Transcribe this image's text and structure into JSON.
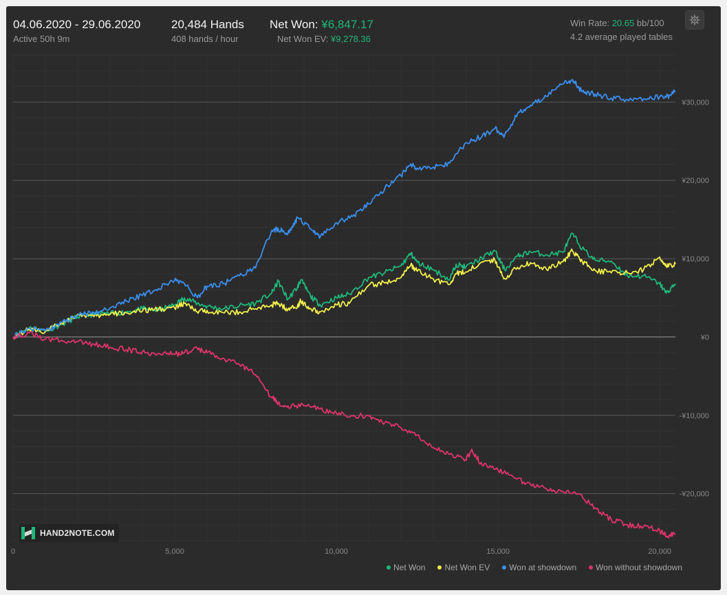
{
  "header": {
    "date_range": "04.06.2020 - 29.06.2020",
    "active": "Active 50h 9m",
    "hands": "20,484 Hands",
    "hands_per_hour": "408 hands / hour",
    "net_won_label": "Net Won:",
    "net_won_value": "¥6,847.17",
    "net_won_ev_label": "Net Won  EV:",
    "net_won_ev_value": "¥9,278.36",
    "win_rate_label": "Win Rate:",
    "win_rate_value": "20.65",
    "win_rate_unit": "bb/100",
    "avg_tables": "4.2 average played tables"
  },
  "logo": {
    "text": "HAND2NOTE.COM"
  },
  "icons": {
    "settings": "gear-icon",
    "logo": "hand2note-logo-icon"
  },
  "colors": {
    "net_won": "#1fb77b",
    "net_won_ev": "#f1ef4a",
    "showdown": "#3a8ff0",
    "non_showdown": "#e0346b",
    "background": "#2b2b2b"
  },
  "chart_data": {
    "type": "line",
    "xlim": [
      0,
      20484
    ],
    "ylim": [
      -26000,
      36000
    ],
    "x_ticks": [
      0,
      5000,
      10000,
      15000,
      20000
    ],
    "x_tick_labels": [
      "0",
      "5,000",
      "10,000",
      "15,000",
      "20,000"
    ],
    "y_ticks": [
      30000,
      20000,
      10000,
      0,
      -10000,
      -20000
    ],
    "y_tick_labels": [
      "¥30,000",
      "¥20,000",
      "¥10,000",
      "¥0",
      "-¥10,000",
      "-¥20,000"
    ],
    "grid": true,
    "legend_position": "bottom-right",
    "series": [
      {
        "name": "Net Won",
        "color": "#1fb77b",
        "points": [
          [
            0,
            0
          ],
          [
            500,
            1200
          ],
          [
            1000,
            800
          ],
          [
            1500,
            1600
          ],
          [
            2000,
            2600
          ],
          [
            2500,
            2900
          ],
          [
            3000,
            3000
          ],
          [
            3500,
            3200
          ],
          [
            4000,
            3600
          ],
          [
            4500,
            3400
          ],
          [
            5000,
            4100
          ],
          [
            5300,
            5000
          ],
          [
            5700,
            4300
          ],
          [
            6000,
            3900
          ],
          [
            6500,
            3600
          ],
          [
            7000,
            4000
          ],
          [
            7500,
            4300
          ],
          [
            8000,
            5600
          ],
          [
            8200,
            7100
          ],
          [
            8500,
            4800
          ],
          [
            8800,
            6400
          ],
          [
            8900,
            7300
          ],
          [
            9200,
            5200
          ],
          [
            9500,
            4100
          ],
          [
            10000,
            5000
          ],
          [
            10400,
            5500
          ],
          [
            11000,
            7600
          ],
          [
            11500,
            8200
          ],
          [
            12000,
            9100
          ],
          [
            12300,
            10700
          ],
          [
            12500,
            9500
          ],
          [
            13000,
            8600
          ],
          [
            13500,
            7300
          ],
          [
            13700,
            9300
          ],
          [
            14000,
            8900
          ],
          [
            14500,
            10100
          ],
          [
            14900,
            11000
          ],
          [
            15200,
            8600
          ],
          [
            15600,
            10300
          ],
          [
            16000,
            10900
          ],
          [
            16500,
            10500
          ],
          [
            17000,
            10800
          ],
          [
            17300,
            13200
          ],
          [
            17600,
            11300
          ],
          [
            18000,
            9800
          ],
          [
            18500,
            9700
          ],
          [
            19000,
            7800
          ],
          [
            19500,
            7800
          ],
          [
            20000,
            6800
          ],
          [
            20200,
            5600
          ],
          [
            20484,
            6800
          ]
        ]
      },
      {
        "name": "Net Won  EV",
        "color": "#f1ef4a",
        "points": [
          [
            0,
            0
          ],
          [
            500,
            1000
          ],
          [
            1000,
            700
          ],
          [
            1500,
            1800
          ],
          [
            2000,
            2900
          ],
          [
            2500,
            2600
          ],
          [
            3000,
            2900
          ],
          [
            3500,
            3100
          ],
          [
            4000,
            3300
          ],
          [
            4500,
            3600
          ],
          [
            5000,
            3700
          ],
          [
            5300,
            4300
          ],
          [
            5700,
            3200
          ],
          [
            6000,
            3400
          ],
          [
            6500,
            3100
          ],
          [
            7000,
            3200
          ],
          [
            7500,
            3600
          ],
          [
            8000,
            4100
          ],
          [
            8200,
            4300
          ],
          [
            8500,
            3500
          ],
          [
            8800,
            4000
          ],
          [
            8900,
            4600
          ],
          [
            9200,
            3600
          ],
          [
            9500,
            3200
          ],
          [
            10000,
            4100
          ],
          [
            10400,
            4300
          ],
          [
            11000,
            6600
          ],
          [
            11500,
            6900
          ],
          [
            12000,
            7600
          ],
          [
            12300,
            9200
          ],
          [
            12500,
            8400
          ],
          [
            13000,
            7400
          ],
          [
            13500,
            6700
          ],
          [
            13700,
            8100
          ],
          [
            14000,
            8300
          ],
          [
            14500,
            9600
          ],
          [
            14900,
            9800
          ],
          [
            15200,
            7500
          ],
          [
            15600,
            8900
          ],
          [
            16000,
            9500
          ],
          [
            16500,
            8600
          ],
          [
            17000,
            9600
          ],
          [
            17300,
            11000
          ],
          [
            17600,
            9700
          ],
          [
            18000,
            8500
          ],
          [
            18500,
            8200
          ],
          [
            19000,
            8200
          ],
          [
            19500,
            8600
          ],
          [
            20000,
            10200
          ],
          [
            20200,
            9000
          ],
          [
            20484,
            9300
          ]
        ]
      },
      {
        "name": "Won at showdown",
        "color": "#3a8ff0",
        "points": [
          [
            0,
            0
          ],
          [
            500,
            1100
          ],
          [
            1000,
            800
          ],
          [
            1500,
            1800
          ],
          [
            2000,
            2800
          ],
          [
            2500,
            3100
          ],
          [
            3000,
            3700
          ],
          [
            3500,
            4600
          ],
          [
            4000,
            5300
          ],
          [
            4500,
            6200
          ],
          [
            5000,
            7300
          ],
          [
            5300,
            6800
          ],
          [
            5700,
            5000
          ],
          [
            6000,
            6500
          ],
          [
            6500,
            6800
          ],
          [
            7000,
            7800
          ],
          [
            7500,
            8800
          ],
          [
            8000,
            13600
          ],
          [
            8200,
            13800
          ],
          [
            8500,
            13200
          ],
          [
            8800,
            15200
          ],
          [
            9200,
            13800
          ],
          [
            9500,
            12800
          ],
          [
            10000,
            14600
          ],
          [
            10500,
            15400
          ],
          [
            11000,
            17000
          ],
          [
            11500,
            19000
          ],
          [
            12000,
            20600
          ],
          [
            12300,
            22100
          ],
          [
            12500,
            21500
          ],
          [
            13000,
            21700
          ],
          [
            13500,
            22200
          ],
          [
            14000,
            24800
          ],
          [
            14500,
            25600
          ],
          [
            14900,
            26600
          ],
          [
            15200,
            25700
          ],
          [
            15600,
            28500
          ],
          [
            16000,
            29600
          ],
          [
            16500,
            30700
          ],
          [
            17000,
            32300
          ],
          [
            17300,
            32900
          ],
          [
            17600,
            31300
          ],
          [
            18000,
            31000
          ],
          [
            18500,
            30500
          ],
          [
            19000,
            30300
          ],
          [
            19500,
            30400
          ],
          [
            20000,
            30700
          ],
          [
            20200,
            30600
          ],
          [
            20484,
            31400
          ]
        ]
      },
      {
        "name": "Won without showdown",
        "color": "#e0346b",
        "points": [
          [
            0,
            0
          ],
          [
            500,
            500
          ],
          [
            1000,
            -300
          ],
          [
            1500,
            -400
          ],
          [
            2000,
            -600
          ],
          [
            2500,
            -900
          ],
          [
            3000,
            -1300
          ],
          [
            3500,
            -1600
          ],
          [
            4000,
            -1900
          ],
          [
            4500,
            -2100
          ],
          [
            5000,
            -2200
          ],
          [
            5300,
            -2000
          ],
          [
            5700,
            -1500
          ],
          [
            6000,
            -2000
          ],
          [
            6500,
            -2700
          ],
          [
            7000,
            -3500
          ],
          [
            7500,
            -4800
          ],
          [
            8000,
            -7700
          ],
          [
            8200,
            -8400
          ],
          [
            8500,
            -8800
          ],
          [
            9000,
            -8800
          ],
          [
            9500,
            -9200
          ],
          [
            10000,
            -9700
          ],
          [
            10500,
            -10100
          ],
          [
            11000,
            -10100
          ],
          [
            11500,
            -10900
          ],
          [
            12000,
            -11600
          ],
          [
            12500,
            -12500
          ],
          [
            13000,
            -14100
          ],
          [
            13500,
            -15000
          ],
          [
            14000,
            -15600
          ],
          [
            14200,
            -14500
          ],
          [
            14500,
            -16300
          ],
          [
            15000,
            -17000
          ],
          [
            15500,
            -18000
          ],
          [
            16000,
            -18800
          ],
          [
            16500,
            -19400
          ],
          [
            17000,
            -19700
          ],
          [
            17500,
            -20000
          ],
          [
            18000,
            -21800
          ],
          [
            18500,
            -23300
          ],
          [
            19000,
            -24000
          ],
          [
            19500,
            -24200
          ],
          [
            20000,
            -24700
          ],
          [
            20200,
            -25400
          ],
          [
            20484,
            -25200
          ]
        ]
      }
    ]
  }
}
